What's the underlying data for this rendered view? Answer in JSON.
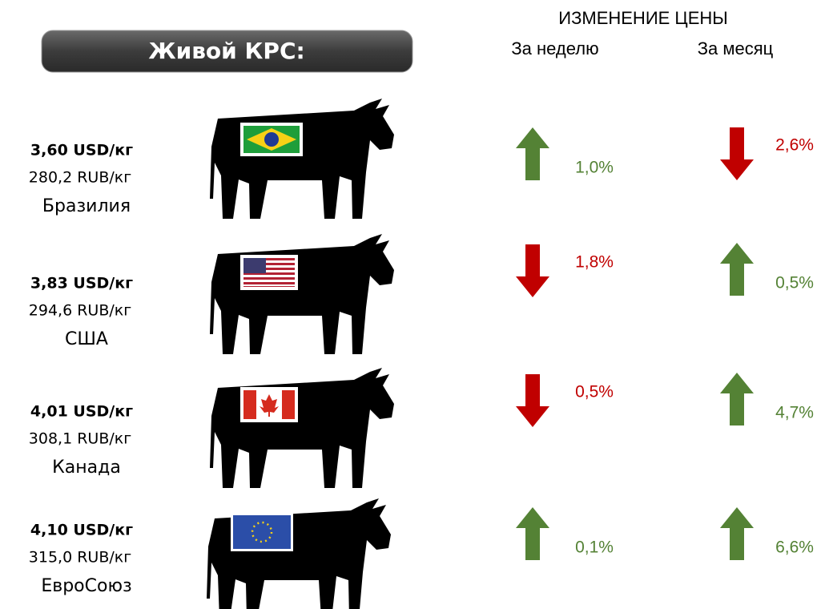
{
  "header": {
    "title": "Живой КРС:",
    "change_label": "ИЗМЕНЕНИЕ ЦЕНЫ",
    "week_label": "За неделю",
    "month_label": "За месяц"
  },
  "colors": {
    "up": "#548235",
    "down": "#c00000"
  },
  "rows": [
    {
      "usd": "3,60 USD/кг",
      "rub": "280,2 RUB/кг",
      "country": "Бразилия",
      "week": "1,0%",
      "week_dir": "up",
      "month": "2,6%",
      "month_dir": "down"
    },
    {
      "usd": "3,83 USD/кг",
      "rub": "294,6 RUB/кг",
      "country": "США",
      "week": "1,8%",
      "week_dir": "down",
      "month": "0,5%",
      "month_dir": "up"
    },
    {
      "usd": "4,01 USD/кг",
      "rub": "308,1 RUB/кг",
      "country": "Канада",
      "week": "0,5%",
      "week_dir": "down",
      "month": "4,7%",
      "month_dir": "up"
    },
    {
      "usd": "4,10 USD/кг",
      "rub": "315,0 RUB/кг",
      "country": "ЕвроСоюз",
      "week": "0,1%",
      "week_dir": "up",
      "month": "6,6%",
      "month_dir": "up"
    }
  ]
}
